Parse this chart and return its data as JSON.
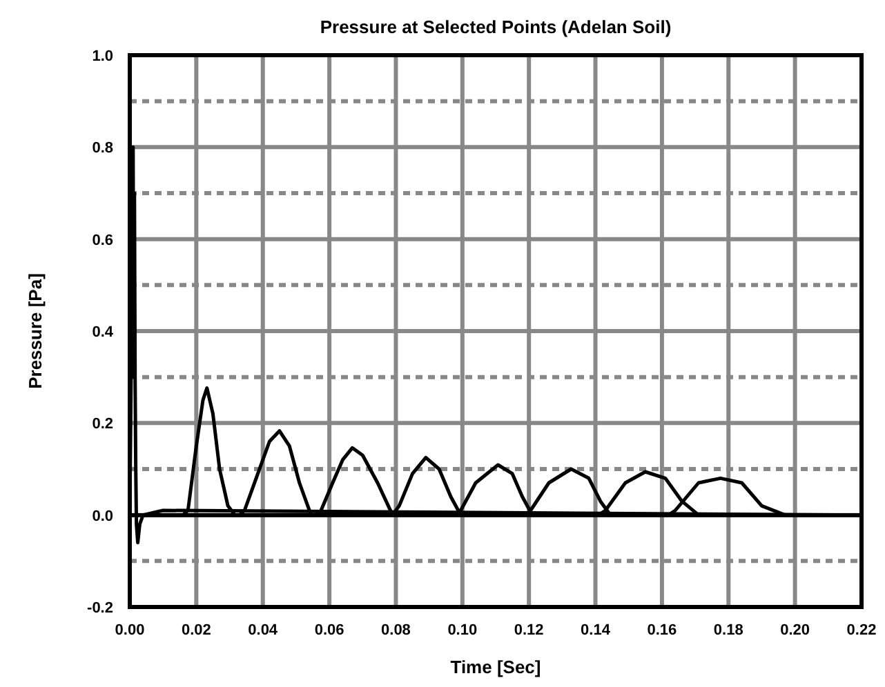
{
  "chart_data": {
    "type": "line",
    "title": "Pressure at Selected Points (Adelan Soil)",
    "xlabel": "Time [Sec]",
    "ylabel": "Pressure [Pa]",
    "xlim": [
      0,
      0.22
    ],
    "xticks": [
      {
        "value": 0,
        "label": "0.00"
      },
      0.02,
      0.04,
      0.06,
      0.08,
      {
        "value": 0.1,
        "label": "0.10"
      },
      0.12,
      0.14,
      0.16,
      0.18,
      {
        "value": 0.2,
        "label": "0.20"
      },
      0.22
    ],
    "ylim": [
      -0.2,
      1.0
    ],
    "yticks": [
      -0.2,
      {
        "value": -0.1,
        "label": null
      },
      {
        "value": 0,
        "label": "0.0"
      },
      {
        "value": 0.1,
        "label": null
      },
      0.2,
      {
        "value": 0.3,
        "label": null
      },
      0.4,
      {
        "value": 0.5,
        "label": null
      },
      0.6,
      {
        "value": 0.7,
        "label": null
      },
      0.8,
      {
        "value": 0.9,
        "label": null
      },
      {
        "value": 1,
        "label": "1.0"
      }
    ],
    "grid": true,
    "marker": "none",
    "line_style": "solid",
    "series": [
      {
        "color": "#000000",
        "x": [
          0,
          0.0004,
          0.0006,
          0.0008,
          0.001,
          0.0012,
          0.0014,
          0.0016,
          0.0018,
          0.002,
          0.0024,
          0.003,
          0.004,
          0.01,
          0.22
        ],
        "values": [
          0,
          0.3,
          0.78,
          0.35,
          0.8,
          0.3,
          0.7,
          0.3,
          0.1,
          -0.02,
          -0.06,
          -0.02,
          0,
          0.01,
          0
        ]
      },
      {
        "color": "#000000",
        "x": [
          0,
          0.016,
          0.0175,
          0.02,
          0.022,
          0.0232,
          0.025,
          0.027,
          0.0295,
          0.0316,
          0.22
        ],
        "values": [
          0,
          0,
          0.01,
          0.15,
          0.25,
          0.276,
          0.22,
          0.1,
          0.02,
          0,
          0
        ]
      },
      {
        "color": "#000000",
        "x": [
          0,
          0.033,
          0.0345,
          0.038,
          0.042,
          0.045,
          0.048,
          0.051,
          0.0545,
          0.22
        ],
        "values": [
          0,
          0,
          0.01,
          0.08,
          0.16,
          0.183,
          0.15,
          0.07,
          0,
          0
        ]
      },
      {
        "color": "#000000",
        "x": [
          0,
          0.056,
          0.0575,
          0.061,
          0.064,
          0.0669,
          0.07,
          0.0745,
          0.079,
          0.22
        ],
        "values": [
          0,
          0,
          0.01,
          0.07,
          0.12,
          0.146,
          0.13,
          0.07,
          0,
          0
        ]
      },
      {
        "color": "#000000",
        "x": [
          0,
          0.079,
          0.081,
          0.085,
          0.089,
          0.093,
          0.0965,
          0.0995,
          0.22
        ],
        "values": [
          0,
          0,
          0.02,
          0.09,
          0.125,
          0.1,
          0.04,
          0,
          0
        ]
      },
      {
        "color": "#000000",
        "x": [
          0,
          0.098,
          0.0995,
          0.104,
          0.1107,
          0.115,
          0.118,
          0.121,
          0.22
        ],
        "values": [
          0,
          0,
          0.01,
          0.07,
          0.109,
          0.09,
          0.04,
          0,
          0
        ]
      },
      {
        "color": "#000000",
        "x": [
          0,
          0.119,
          0.1205,
          0.126,
          0.1327,
          0.138,
          0.1415,
          0.1445,
          0.22
        ],
        "values": [
          0,
          0,
          0.01,
          0.07,
          0.1,
          0.08,
          0.03,
          0,
          0
        ]
      },
      {
        "color": "#000000",
        "x": [
          0,
          0.141,
          0.143,
          0.149,
          0.155,
          0.161,
          0.166,
          0.171,
          0.22
        ],
        "values": [
          0,
          0,
          0.01,
          0.07,
          0.094,
          0.08,
          0.03,
          0,
          0
        ]
      },
      {
        "color": "#000000",
        "x": [
          0,
          0.162,
          0.164,
          0.171,
          0.1776,
          0.184,
          0.19,
          0.197,
          0.22
        ],
        "values": [
          0,
          0,
          0.01,
          0.07,
          0.08,
          0.07,
          0.02,
          0,
          0
        ]
      }
    ]
  }
}
